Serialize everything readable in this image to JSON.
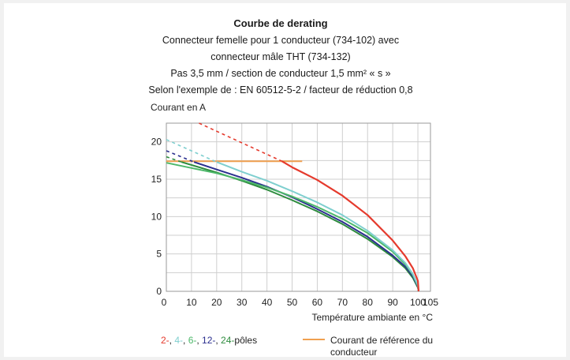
{
  "chart_data": {
    "type": "line",
    "title": "Courbe de derating",
    "subtitle_lines": [
      "Connecteur femelle pour 1 conducteur (734-102) avec",
      "connecteur mâle THT (734-132)",
      "Pas 3,5 mm / section de conducteur 1,5 mm² « s »",
      "Selon l'exemple de : EN 60512-5-2 / facteur de réduction 0,8"
    ],
    "ylabel": "Courant en A",
    "xlabel": "Température ambiante en °C",
    "xlim": [
      0,
      105
    ],
    "ylim": [
      0,
      22.5
    ],
    "x_ticks": [
      0,
      10,
      20,
      30,
      40,
      50,
      60,
      70,
      80,
      90,
      100,
      105
    ],
    "x_tick_labels": [
      "0",
      "10",
      "20",
      "30",
      "40",
      "50",
      "60",
      "70",
      "80",
      "90",
      "100",
      "105"
    ],
    "y_ticks": [
      0,
      5,
      10,
      15,
      20
    ],
    "y_tick_labels": [
      "0",
      "5",
      "10",
      "15",
      "20"
    ],
    "grid": true,
    "legend_placement": "bottom",
    "series": [
      {
        "name": "2-",
        "color": "#e53a2d",
        "dashed_points": [
          [
            13,
            22.5
          ],
          [
            46,
            17.4
          ]
        ],
        "points": [
          [
            46,
            17.4
          ],
          [
            50,
            16.6
          ],
          [
            60,
            14.9
          ],
          [
            70,
            12.8
          ],
          [
            80,
            10.2
          ],
          [
            90,
            6.8
          ],
          [
            95,
            4.7
          ],
          [
            98,
            3.1
          ],
          [
            100,
            1.4
          ],
          [
            100.3,
            0
          ]
        ]
      },
      {
        "name": "4-",
        "color": "#7fcfcf",
        "dashed_points": [
          [
            0,
            20.3
          ],
          [
            20,
            17.3
          ]
        ],
        "points": [
          [
            20,
            17.3
          ],
          [
            30,
            16.0
          ],
          [
            40,
            14.8
          ],
          [
            50,
            13.4
          ],
          [
            60,
            11.9
          ],
          [
            70,
            10.2
          ],
          [
            80,
            8.1
          ],
          [
            90,
            5.5
          ],
          [
            95,
            3.8
          ],
          [
            98,
            2.3
          ],
          [
            100,
            0.8
          ],
          [
            100.3,
            0
          ]
        ]
      },
      {
        "name": "6-",
        "color": "#4db86a",
        "dashed_points": [],
        "points": [
          [
            0,
            17.2
          ],
          [
            10,
            16.5
          ],
          [
            20,
            15.8
          ],
          [
            30,
            14.9
          ],
          [
            40,
            13.9
          ],
          [
            50,
            12.7
          ],
          [
            60,
            11.3
          ],
          [
            70,
            9.7
          ],
          [
            80,
            7.8
          ],
          [
            90,
            5.3
          ],
          [
            95,
            3.6
          ],
          [
            98,
            2.2
          ],
          [
            100,
            0.7
          ],
          [
            100.3,
            0
          ]
        ]
      },
      {
        "name": "12-",
        "color": "#2b2f8f",
        "dashed_points": [
          [
            0,
            18.8
          ],
          [
            11,
            17.3
          ]
        ],
        "points": [
          [
            11,
            17.3
          ],
          [
            20,
            16.3
          ],
          [
            30,
            15.2
          ],
          [
            40,
            14.0
          ],
          [
            50,
            12.6
          ],
          [
            60,
            11.0
          ],
          [
            70,
            9.3
          ],
          [
            80,
            7.3
          ],
          [
            90,
            4.8
          ],
          [
            95,
            3.3
          ],
          [
            98,
            2.0
          ],
          [
            100,
            0.6
          ],
          [
            100.3,
            0
          ]
        ]
      },
      {
        "name": "24-",
        "color": "#2e8c3e",
        "dashed_points": [
          [
            0,
            18.0
          ],
          [
            6,
            17.3
          ]
        ],
        "points": [
          [
            6,
            17.3
          ],
          [
            10,
            16.9
          ],
          [
            20,
            15.9
          ],
          [
            30,
            14.8
          ],
          [
            40,
            13.6
          ],
          [
            50,
            12.2
          ],
          [
            60,
            10.7
          ],
          [
            70,
            9.0
          ],
          [
            80,
            7.0
          ],
          [
            90,
            4.6
          ],
          [
            95,
            3.1
          ],
          [
            98,
            1.8
          ],
          [
            100,
            0.5
          ],
          [
            100.3,
            0
          ]
        ]
      }
    ],
    "reference_line": {
      "name": "Courant de référence du conducteur",
      "y": 17.4,
      "x_range": [
        0,
        54
      ],
      "color": "#f0a050"
    },
    "legend": {
      "poles_parts": [
        {
          "text": "2-",
          "color": "#e53a2d"
        },
        {
          "text": ", ",
          "color": "#222222"
        },
        {
          "text": "4-",
          "color": "#7fcfcf"
        },
        {
          "text": ", ",
          "color": "#222222"
        },
        {
          "text": "6-",
          "color": "#4db86a"
        },
        {
          "text": ", ",
          "color": "#222222"
        },
        {
          "text": "12-",
          "color": "#2b2f8f"
        },
        {
          "text": ", ",
          "color": "#222222"
        },
        {
          "text": "24-",
          "color": "#2e8c3e"
        },
        {
          "text": "pôles",
          "color": "#222222"
        }
      ],
      "reference_label_lines": [
        "Courant de référence du",
        "conducteur"
      ]
    }
  }
}
